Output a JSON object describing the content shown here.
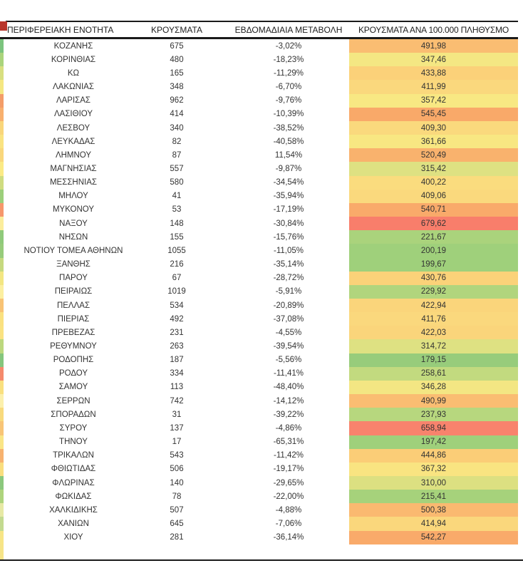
{
  "chart_data": {
    "type": "table",
    "title": "",
    "columns": [
      "ΠΕΡΙΦΕΡΕΙΑΚΗ ΕΝΟΤΗΤΑ",
      "ΚΡΟΥΣΜΑΤΑ",
      "ΕΒΔΟΜΑΔΙΑΙΑ ΜΕΤΑΒΟΛΗ",
      "ΚΡΟΥΣΜΑΤΑ ΑΝΑ 100.000 ΠΛΗΘΥΣΜΟ"
    ],
    "conditional_format": {
      "column": "ΚΡΟΥΣΜΑΤΑ ΑΝΑ 100.000 ΠΛΗΘΥΣΜΟ",
      "scale": "green-yellow-red",
      "low_color": "#97CC7B",
      "mid_color": "#F8E883",
      "high_color": "#F87E6B"
    },
    "rows": [
      {
        "name": "ΚΟΖΑΝΗΣ",
        "cases": "675",
        "weekly_change": "-3,02%",
        "per_100k": "491,98",
        "cell_color": "#FABD72",
        "edge_color": "#7CC47E"
      },
      {
        "name": "ΚΟΡΙΝΘΙΑΣ",
        "cases": "480",
        "weekly_change": "-18,23%",
        "per_100k": "347,46",
        "cell_color": "#F4E783",
        "edge_color": "#AAD47C"
      },
      {
        "name": "ΚΩ",
        "cases": "165",
        "weekly_change": "-11,29%",
        "per_100k": "433,88",
        "cell_color": "#FBD179",
        "edge_color": "#D8DF80"
      },
      {
        "name": "ΛΑΚΩΝΙΑΣ",
        "cases": "348",
        "weekly_change": "-6,70%",
        "per_100k": "411,99",
        "cell_color": "#FAD87D",
        "edge_color": "#F5E782"
      },
      {
        "name": "ΛΑΡΙΣΑΣ",
        "cases": "962",
        "weekly_change": "-9,76%",
        "per_100k": "357,42",
        "cell_color": "#F8E883",
        "edge_color": "#F49D68"
      },
      {
        "name": "ΛΑΣΙΘΙΟΥ",
        "cases": "414",
        "weekly_change": "-10,39%",
        "per_100k": "545,45",
        "cell_color": "#F9A969",
        "edge_color": "#F8B06E"
      },
      {
        "name": "ΛΕΣΒΟΥ",
        "cases": "340",
        "weekly_change": "-38,52%",
        "per_100k": "409,30",
        "cell_color": "#FAD97D",
        "edge_color": "#F9D67B"
      },
      {
        "name": "ΛΕΥΚΑΔΑΣ",
        "cases": "82",
        "weekly_change": "-40,58%",
        "per_100k": "361,66",
        "cell_color": "#F8E782",
        "edge_color": "#FAE381"
      },
      {
        "name": "ΛΗΜΝΟΥ",
        "cases": "87",
        "weekly_change": "11,54%",
        "per_100k": "520,49",
        "cell_color": "#F9B26D",
        "edge_color": "#F9D77C"
      },
      {
        "name": "ΜΑΓΝΗΣΙΑΣ",
        "cases": "557",
        "weekly_change": "-9,87%",
        "per_100k": "315,42",
        "cell_color": "#DEE182",
        "edge_color": "#FBEA85"
      },
      {
        "name": "ΜΕΣΣΗΝΙΑΣ",
        "cases": "580",
        "weekly_change": "-34,54%",
        "per_100k": "400,22",
        "cell_color": "#FADC7E",
        "edge_color": "#CFDC80"
      },
      {
        "name": "ΜΗΛΟΥ",
        "cases": "41",
        "weekly_change": "-35,94%",
        "per_100k": "409,06",
        "cell_color": "#FAD97D",
        "edge_color": "#9CCF7B"
      },
      {
        "name": "ΜΥΚΟΝΟΥ",
        "cases": "53",
        "weekly_change": "-17,19%",
        "per_100k": "540,71",
        "cell_color": "#F9AA6A",
        "edge_color": "#F6976B"
      },
      {
        "name": "ΝΑΞΟΥ",
        "cases": "148",
        "weekly_change": "-30,84%",
        "per_100k": "679,62",
        "cell_color": "#F87E6B",
        "edge_color": "#FBED9C"
      },
      {
        "name": "ΝΗΣΩΝ",
        "cases": "155",
        "weekly_change": "-15,76%",
        "per_100k": "221,67",
        "cell_color": "#AAD37C",
        "edge_color": "#8FCA7B"
      },
      {
        "name": "ΝΟΤΙΟΥ ΤΟΜΕΑ ΑΘΗΝΩΝ",
        "cases": "1055",
        "weekly_change": "-11,05%",
        "per_100k": "200,19",
        "cell_color": "#9FD07B",
        "edge_color": "#97CC7B"
      },
      {
        "name": "ΞΑΝΘΗΣ",
        "cases": "216",
        "weekly_change": "-35,14%",
        "per_100k": "199,67",
        "cell_color": "#9FD07B",
        "edge_color": "#C6D97F"
      },
      {
        "name": "ΠΑΡΟΥ",
        "cases": "67",
        "weekly_change": "-28,72%",
        "per_100k": "430,76",
        "cell_color": "#FBD279",
        "edge_color": "#F3E682"
      },
      {
        "name": "ΠΕΙΡΑΙΩΣ",
        "cases": "1019",
        "weekly_change": "-5,91%",
        "per_100k": "229,92",
        "cell_color": "#B1D57D",
        "edge_color": "#FCEFA0"
      },
      {
        "name": "ΠΕΛΛΑΣ",
        "cases": "534",
        "weekly_change": "-20,89%",
        "per_100k": "422,94",
        "cell_color": "#FAD57B",
        "edge_color": "#F8C375"
      },
      {
        "name": "ΠΙΕΡΙΑΣ",
        "cases": "492",
        "weekly_change": "-37,08%",
        "per_100k": "411,76",
        "cell_color": "#FAD87D",
        "edge_color": "#FAE180"
      },
      {
        "name": "ΠΡΕΒΕΖΑΣ",
        "cases": "231",
        "weekly_change": "-4,55%",
        "per_100k": "422,03",
        "cell_color": "#FAD57B",
        "edge_color": "#FAE281"
      },
      {
        "name": "ΡΕΘΥΜΝΟΥ",
        "cases": "263",
        "weekly_change": "-39,54%",
        "per_100k": "314,72",
        "cell_color": "#DEE182",
        "edge_color": "#BCD87E"
      },
      {
        "name": "ΡΟΔΟΠΗΣ",
        "cases": "187",
        "weekly_change": "-5,56%",
        "per_100k": "179,15",
        "cell_color": "#97CC7B",
        "edge_color": "#84C67D"
      },
      {
        "name": "ΡΟΔΟΥ",
        "cases": "334",
        "weekly_change": "-11,41%",
        "per_100k": "258,61",
        "cell_color": "#C2DA7F",
        "edge_color": "#F58A6C"
      },
      {
        "name": "ΣΑΜΟΥ",
        "cases": "113",
        "weekly_change": "-48,40%",
        "per_100k": "346,28",
        "cell_color": "#F3E683",
        "edge_color": "#F9E07F"
      },
      {
        "name": "ΣΕΡΡΩΝ",
        "cases": "742",
        "weekly_change": "-14,12%",
        "per_100k": "490,99",
        "cell_color": "#FABD72",
        "edge_color": "#FCF0AC"
      },
      {
        "name": "ΣΠΟΡΑΔΩΝ",
        "cases": "31",
        "weekly_change": "-39,22%",
        "per_100k": "237,93",
        "cell_color": "#B7D77E",
        "edge_color": "#F8DA7D"
      },
      {
        "name": "ΣΥΡΟΥ",
        "cases": "137",
        "weekly_change": "-4,86%",
        "per_100k": "658,94",
        "cell_color": "#F8836D",
        "edge_color": "#F8C577"
      },
      {
        "name": "ΤΗΝΟΥ",
        "cases": "17",
        "weekly_change": "-65,31%",
        "per_100k": "197,42",
        "cell_color": "#9FD07B",
        "edge_color": "#FAE586"
      },
      {
        "name": "ΤΡΙΚΑΛΩΝ",
        "cases": "543",
        "weekly_change": "-11,42%",
        "per_100k": "444,86",
        "cell_color": "#FBCD77",
        "edge_color": "#F7B26F"
      },
      {
        "name": "ΦΘΙΩΤΙΔΑΣ",
        "cases": "506",
        "weekly_change": "-19,17%",
        "per_100k": "367,32",
        "cell_color": "#F9E481",
        "edge_color": "#F9DE7E"
      },
      {
        "name": "ΦΛΩΡΙΝΑΣ",
        "cases": "140",
        "weekly_change": "-29,65%",
        "per_100k": "310,00",
        "cell_color": "#DCE081",
        "edge_color": "#8BC87D"
      },
      {
        "name": "ΦΩΚΙΔΑΣ",
        "cases": "78",
        "weekly_change": "-22,00%",
        "per_100k": "215,41",
        "cell_color": "#A6D27B",
        "edge_color": "#AED47D"
      },
      {
        "name": "ΧΑΛΚΙΔΙΚΗΣ",
        "cases": "507",
        "weekly_change": "-4,88%",
        "per_100k": "500,38",
        "cell_color": "#FAB970",
        "edge_color": "#E7E9A5"
      },
      {
        "name": "ΧΑΝΙΩΝ",
        "cases": "645",
        "weekly_change": "-7,06%",
        "per_100k": "414,94",
        "cell_color": "#FAD77C",
        "edge_color": "#C3DA90"
      },
      {
        "name": "ΧΙΟΥ",
        "cases": "281",
        "weekly_change": "-36,14%",
        "per_100k": "542,27",
        "cell_color": "#F9AA6A",
        "edge_color": "#F7E586"
      }
    ]
  },
  "decorations": {
    "corner_block_color": "#B8352B",
    "edge_footer_color": "#F6E488",
    "line_color": "#1a1a1a",
    "background": "#ffffff"
  }
}
